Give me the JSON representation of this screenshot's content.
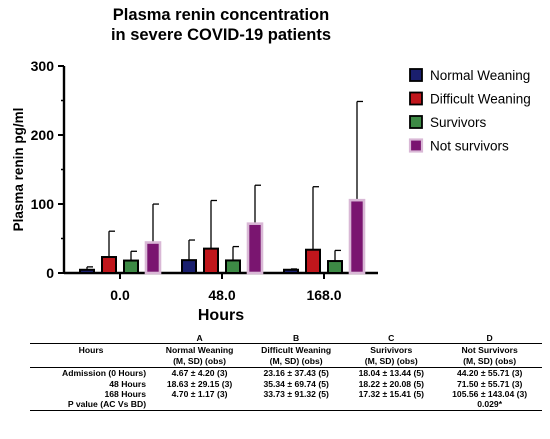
{
  "chart_data": {
    "type": "bar",
    "title_lines": [
      "Plasma renin concentration",
      "in severe COVID-19 patients"
    ],
    "xlabel": "Hours",
    "ylabel": "Plasma renin pg/ml",
    "ylim": [
      0,
      300
    ],
    "yticks": [
      "0",
      "100",
      "200",
      "300"
    ],
    "categories": [
      "0.0",
      "48.0",
      "168.0"
    ],
    "legend_position": "right",
    "series": [
      {
        "name": "Normal Weaning",
        "color": "#1a1f6e",
        "values": [
          4.67,
          18.63,
          4.7
        ],
        "sd": [
          4.2,
          29.15,
          1.17
        ]
      },
      {
        "name": "Difficult Weaning",
        "color": "#c0161c",
        "values": [
          23.16,
          35.34,
          33.73
        ],
        "sd": [
          37.43,
          69.74,
          91.32
        ]
      },
      {
        "name": "Survivors",
        "color": "#3d8a45",
        "values": [
          18.04,
          18.22,
          17.32
        ],
        "sd": [
          13.44,
          20.08,
          15.41
        ]
      },
      {
        "name": "Not survivors",
        "color": "#7a1570",
        "values": [
          44.2,
          71.5,
          105.56
        ],
        "sd": [
          55.71,
          55.71,
          143.04
        ]
      }
    ]
  },
  "table": {
    "letters": [
      "A",
      "B",
      "C",
      "D"
    ],
    "header_row1": [
      "Hours",
      "Normal Weaning",
      "Difficult Weaning",
      "Surivivors",
      "Not Survivors"
    ],
    "header_row2": [
      "(M, SD) (obs)",
      "(M, SD)  (obs)",
      "(M, SD) (obs)",
      "(M, SD) (obs)"
    ],
    "rows": [
      [
        "Admission (0 Hours)",
        "4.67 ± 4.20 (3)",
        "23.16 ± 37.43 (5)",
        "18.04 ± 13.44 (5)",
        "44.20 ± 55.71 (3)"
      ],
      [
        "48 Hours",
        "18.63 ± 29.15 (3)",
        "35.34 ± 69.74 (5)",
        "18.22 ± 20.08 (5)",
        "71.50 ± 55.71 (3)"
      ],
      [
        "168 Hours",
        "4.70 ± 1.17 (3)",
        "33.73 ± 91.32 (5)",
        "17.32 ± 15.41 (5)",
        "105.56 ± 143.04 (3)"
      ],
      [
        "P value (AC Vs BD)",
        "",
        "",
        "",
        "0.029*"
      ]
    ]
  }
}
